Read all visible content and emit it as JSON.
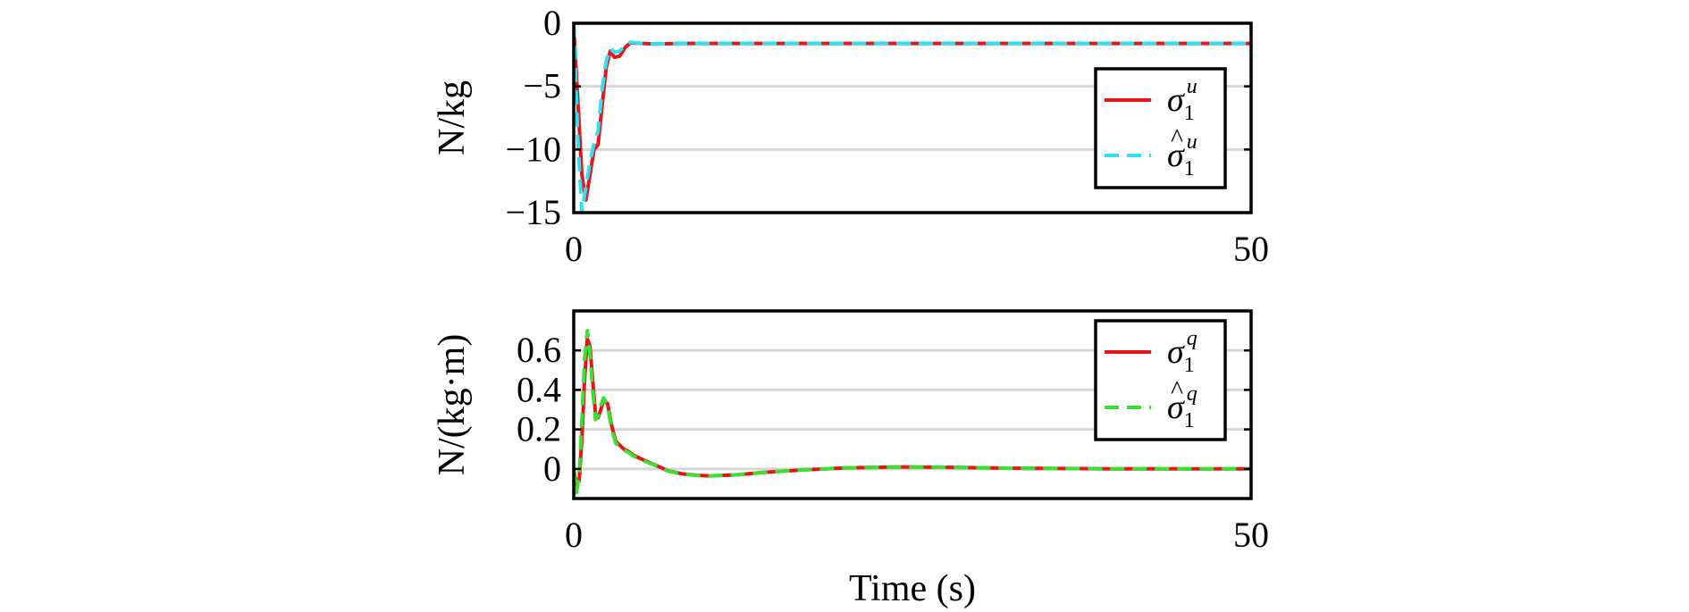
{
  "chart_data": [
    {
      "type": "line",
      "ylabel": "N/kg",
      "xlabel": "",
      "xlim": [
        0,
        50
      ],
      "ylim": [
        -15,
        0
      ],
      "xticks": [
        0,
        50
      ],
      "yticks": [
        0,
        -5,
        -10,
        -15
      ],
      "ytick_labels": [
        "0",
        "−5",
        "−10",
        "−15"
      ],
      "grid": "horizontal",
      "legend_position": "right",
      "series": [
        {
          "name": "σ1u",
          "legend": {
            "symbol": "σ",
            "sup": "u",
            "sub": "1",
            "hat": false
          },
          "color": "#e8141b",
          "dash": "solid",
          "x": [
            0,
            0.3,
            0.6,
            0.9,
            1.2,
            1.5,
            1.8,
            2.1,
            2.4,
            2.7,
            3.0,
            3.4,
            3.8,
            4.2,
            5,
            6,
            8,
            12,
            20,
            30,
            40,
            50
          ],
          "y": [
            -0.3,
            -6,
            -12,
            -14,
            -12,
            -10,
            -9.6,
            -6.5,
            -3.5,
            -2.2,
            -2.7,
            -2.6,
            -1.9,
            -1.55,
            -1.6,
            -1.65,
            -1.6,
            -1.6,
            -1.6,
            -1.6,
            -1.6,
            -1.6
          ]
        },
        {
          "name": "σ̂1u",
          "legend": {
            "symbol": "σ",
            "sup": "u",
            "sub": "1",
            "hat": true
          },
          "color": "#2ee0f0",
          "dash": "dashed",
          "x": [
            0,
            0.3,
            0.6,
            0.9,
            1.2,
            1.5,
            1.8,
            2.1,
            2.4,
            2.7,
            3.0,
            3.4,
            3.8,
            4.2,
            5,
            6,
            8,
            12,
            20,
            30,
            40,
            50
          ],
          "y": [
            0,
            -9,
            -15,
            -13,
            -11,
            -9.5,
            -8.5,
            -5.2,
            -3.0,
            -2.0,
            -2.3,
            -2.2,
            -1.7,
            -1.5,
            -1.6,
            -1.65,
            -1.6,
            -1.6,
            -1.6,
            -1.6,
            -1.6,
            -1.6
          ]
        }
      ]
    },
    {
      "type": "line",
      "ylabel": "N/(kg·m)",
      "xlabel": "Time (s)",
      "xlim": [
        0,
        50
      ],
      "ylim": [
        -0.15,
        0.8
      ],
      "xticks": [
        0,
        50
      ],
      "yticks": [
        0,
        0.2,
        0.4,
        0.6
      ],
      "ytick_labels": [
        "0",
        "0.2",
        "0.4",
        "0.6"
      ],
      "grid": "horizontal",
      "legend_position": "top-right",
      "series": [
        {
          "name": "σ1q",
          "legend": {
            "symbol": "σ",
            "sup": "q",
            "sub": "1",
            "hat": false
          },
          "color": "#e8141b",
          "dash": "solid",
          "x": [
            0,
            0.2,
            0.4,
            0.6,
            0.8,
            1.0,
            1.2,
            1.4,
            1.6,
            1.8,
            2.0,
            2.2,
            2.5,
            2.8,
            3.1,
            3.4,
            3.7,
            4.0,
            4.4,
            5.0,
            6.0,
            7.0,
            8.0,
            9.0,
            10.0,
            12.0,
            14.0,
            17.0,
            20.0,
            24.0,
            28.0,
            32.0,
            36.0,
            40.0,
            45.0,
            50.0
          ],
          "y": [
            0,
            -0.08,
            -0.06,
            0.15,
            0.45,
            0.66,
            0.62,
            0.45,
            0.28,
            0.26,
            0.3,
            0.35,
            0.33,
            0.22,
            0.14,
            0.12,
            0.1,
            0.09,
            0.07,
            0.05,
            0.02,
            -0.01,
            -0.025,
            -0.032,
            -0.035,
            -0.03,
            -0.018,
            -0.005,
            0.005,
            0.01,
            0.008,
            0.004,
            0.002,
            0.0,
            0.0,
            0.0
          ]
        },
        {
          "name": "σ̂1q",
          "legend": {
            "symbol": "σ",
            "sup": "q",
            "sub": "1",
            "hat": true
          },
          "color": "#3be033",
          "dash": "dashed",
          "x": [
            0,
            0.2,
            0.4,
            0.6,
            0.8,
            1.0,
            1.2,
            1.4,
            1.6,
            1.8,
            2.0,
            2.2,
            2.5,
            2.8,
            3.1,
            3.4,
            3.7,
            4.0,
            4.4,
            5.0,
            6.0,
            7.0,
            8.0,
            9.0,
            10.0,
            12.0,
            14.0,
            17.0,
            20.0,
            24.0,
            28.0,
            32.0,
            36.0,
            40.0,
            45.0,
            50.0
          ],
          "y": [
            0,
            -0.12,
            -0.04,
            0.25,
            0.55,
            0.7,
            0.58,
            0.4,
            0.25,
            0.27,
            0.32,
            0.36,
            0.32,
            0.2,
            0.13,
            0.11,
            0.095,
            0.085,
            0.065,
            0.045,
            0.018,
            -0.012,
            -0.026,
            -0.033,
            -0.035,
            -0.03,
            -0.018,
            -0.005,
            0.005,
            0.01,
            0.008,
            0.004,
            0.002,
            0.0,
            0.0,
            0.0
          ]
        }
      ]
    }
  ]
}
